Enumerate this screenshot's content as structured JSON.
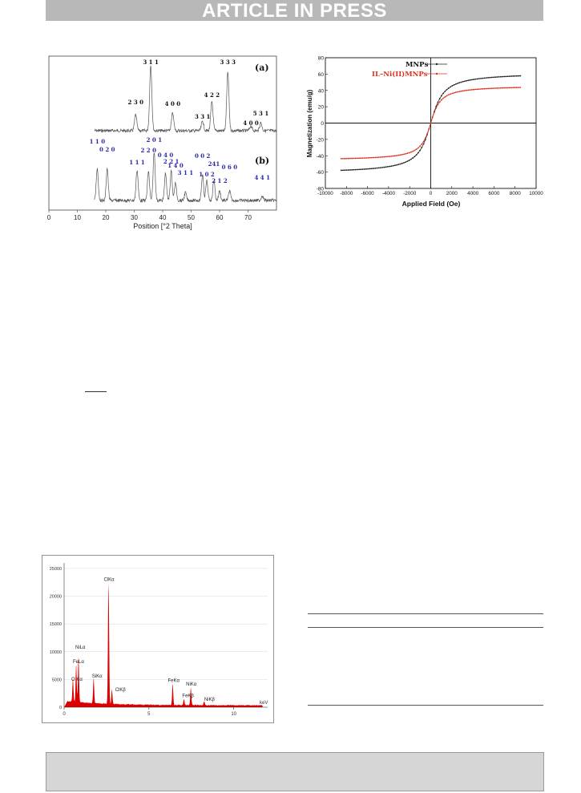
{
  "header": {
    "banner_text": "ARTICLE IN PRESS"
  },
  "xrd": {
    "panel_a_label": "(a)",
    "panel_b_label": "(b)",
    "xlabel": "Position [°2 Theta]",
    "x_ticks": [
      "0",
      "10",
      "20",
      "30",
      "40",
      "50",
      "60",
      "70"
    ],
    "peaks_a": [
      {
        "label": "2 3 0",
        "x": 30.5
      },
      {
        "label": "3 1 1",
        "x": 35.8
      },
      {
        "label": "4 0 0",
        "x": 43.5
      },
      {
        "label": "3 3 1",
        "x": 54.0
      },
      {
        "label": "4 2 2",
        "x": 57.3
      },
      {
        "label": "3 3 3",
        "x": 62.9
      },
      {
        "label": "4 0 0",
        "x": 71.0
      },
      {
        "label": "5 3 1",
        "x": 74.5
      }
    ],
    "peaks_b": [
      {
        "label": "1 1 0",
        "x": 17.0
      },
      {
        "label": "0 2 0",
        "x": 20.5
      },
      {
        "label": "1 1 1",
        "x": 31.0
      },
      {
        "label": "2 2 0",
        "x": 35.0
      },
      {
        "label": "2 0 1",
        "x": 37.0
      },
      {
        "label": "0 4 0",
        "x": 41.0
      },
      {
        "label": "2 2 1",
        "x": 43.0
      },
      {
        "label": "1 4 0",
        "x": 44.5
      },
      {
        "label": "3 1 1",
        "x": 48.0
      },
      {
        "label": "0 0 2",
        "x": 54.0
      },
      {
        "label": "1 0 2",
        "x": 55.5
      },
      {
        "label": "241",
        "x": 58.0
      },
      {
        "label": "2 1 2",
        "x": 60.0
      },
      {
        "label": "0 6 0",
        "x": 63.5
      },
      {
        "label": "4 4 1",
        "x": 75.0
      }
    ]
  },
  "chart_data": [
    {
      "type": "line",
      "xlabel": "Applied Field (Oe)",
      "ylabel": "Magnetization (emu/g)",
      "xlim": [
        -10000,
        10000
      ],
      "ylim": [
        -80,
        80
      ],
      "x_ticks": [
        -10000,
        -8000,
        -6000,
        -4000,
        -2000,
        0,
        2000,
        4000,
        6000,
        8000,
        10000
      ],
      "y_ticks": [
        -80,
        -60,
        -40,
        -20,
        0,
        20,
        40,
        60,
        80
      ],
      "x_tick_labels": [
        "-10000",
        "-8000",
        "-6000",
        "-4000",
        "-2000",
        "0",
        "2000",
        "4000",
        "6000",
        "8000",
        "10000"
      ],
      "y_tick_labels": [
        "-80",
        "-60",
        "-40",
        "-20",
        "0",
        "20",
        "40",
        "60",
        "80"
      ],
      "legend_position": "top-right",
      "series": [
        {
          "name": "MNPs",
          "color": "#222222",
          "saturation": 62,
          "field_scale": 900
        },
        {
          "name": "IL–Ni(II)MNPs",
          "color": "#e0301e",
          "saturation": 46,
          "field_scale": 700
        }
      ]
    },
    {
      "type": "area",
      "xlabel": "keV",
      "xlim": [
        0,
        12
      ],
      "ylim": [
        0,
        26000
      ],
      "y_ticks": [
        0,
        5000,
        10000,
        15000,
        20000,
        25000
      ],
      "y_tick_labels": [
        "0",
        "5000",
        "10000",
        "15000",
        "20000",
        "25000"
      ],
      "x_ticks": [
        0,
        5,
        10
      ],
      "x_tick_labels": [
        "0",
        "5",
        "10"
      ],
      "color": "#dd0000",
      "peaks": [
        {
          "label": "O Kα",
          "x": 0.52,
          "y": 4200
        },
        {
          "label": "NiLα",
          "x": 0.85,
          "y": 8200
        },
        {
          "label": "FeLα",
          "x": 0.71,
          "y": 6800
        },
        {
          "label": "SiKα",
          "x": 1.74,
          "y": 4600
        },
        {
          "label": "ClKα",
          "x": 2.62,
          "y": 22000
        },
        {
          "label": "ClKβ",
          "x": 2.82,
          "y": 2600
        },
        {
          "label": "FeKα",
          "x": 6.4,
          "y": 3800
        },
        {
          "label": "FeKβ",
          "x": 7.06,
          "y": 1100
        },
        {
          "label": "NiKα",
          "x": 7.47,
          "y": 3200
        },
        {
          "label": "NiKβ",
          "x": 8.26,
          "y": 700
        }
      ]
    }
  ]
}
